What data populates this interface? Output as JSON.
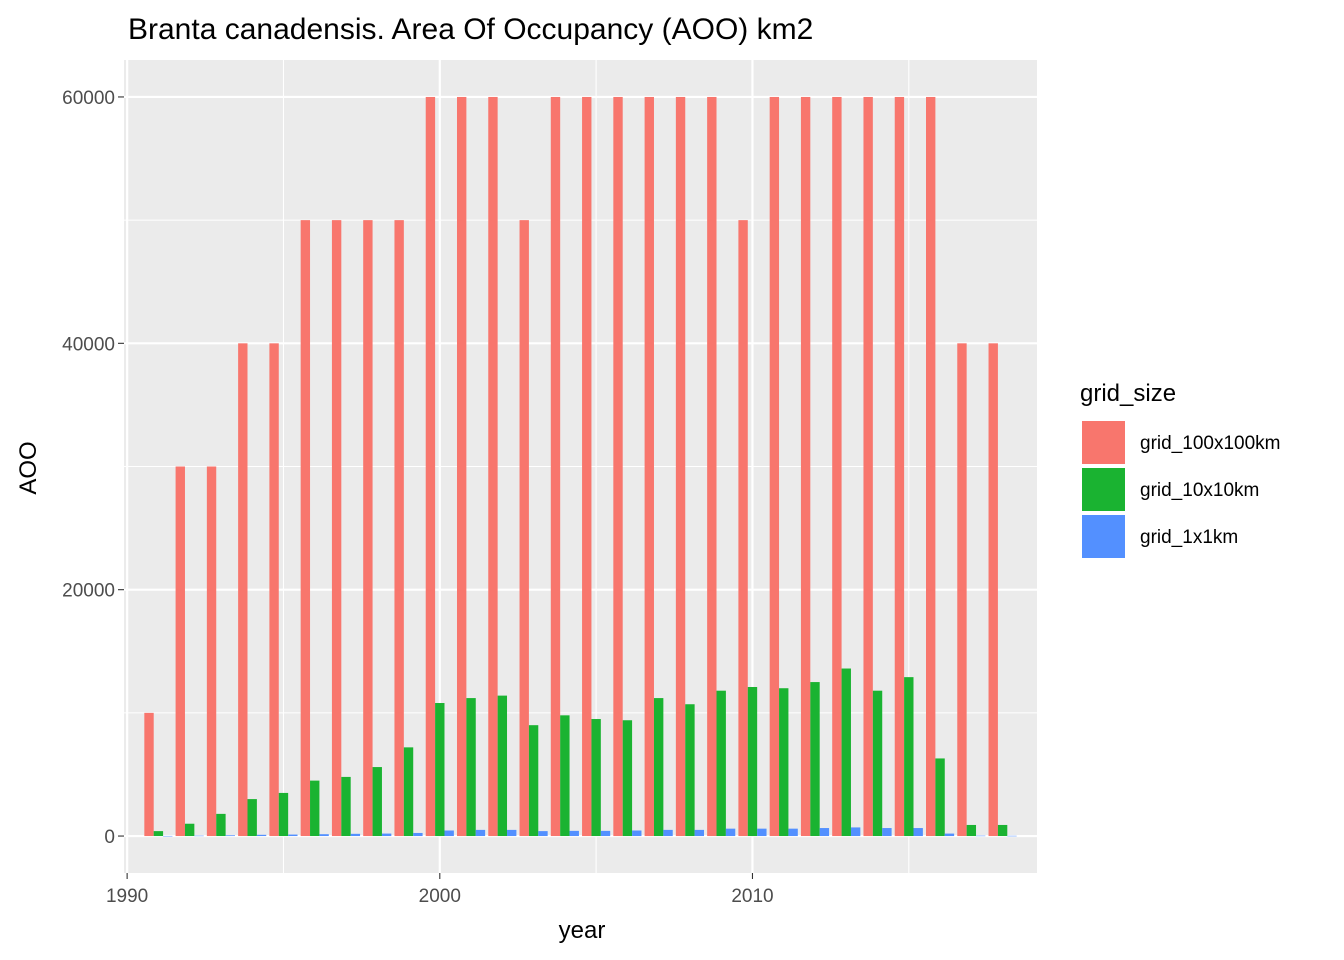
{
  "chart_data": {
    "type": "bar",
    "title": "Branta canadensis. Area Of Occupancy (AOO) km2",
    "xlabel": "year",
    "ylabel": "AOO",
    "x_ticks": [
      "1990",
      "2000",
      "2010"
    ],
    "y_ticks": [
      "0",
      "20000",
      "40000",
      "60000"
    ],
    "xlim": [
      1989.9,
      2019.1
    ],
    "ylim": [
      -3000,
      63000
    ],
    "grid": true,
    "legend": {
      "title": "grid_size",
      "position": "right"
    },
    "x": [
      1991,
      1992,
      1993,
      1994,
      1995,
      1996,
      1997,
      1998,
      1999,
      2000,
      2001,
      2002,
      2003,
      2004,
      2005,
      2006,
      2007,
      2008,
      2009,
      2010,
      2011,
      2012,
      2013,
      2014,
      2015,
      2016,
      2017,
      2018
    ],
    "series": [
      {
        "name": "grid_100x100km",
        "color": "#F8766D",
        "values": [
          10000,
          30000,
          30000,
          40000,
          40000,
          50000,
          50000,
          50000,
          50000,
          60000,
          60000,
          60000,
          50000,
          60000,
          60000,
          60000,
          60000,
          60000,
          60000,
          50000,
          60000,
          60000,
          60000,
          60000,
          60000,
          60000,
          40000,
          40000
        ]
      },
      {
        "name": "grid_10x10km",
        "color": "#1AB331",
        "values": [
          400,
          1000,
          1800,
          3000,
          3500,
          4500,
          4800,
          5600,
          7200,
          10800,
          11200,
          11400,
          9000,
          9800,
          9500,
          9400,
          11200,
          10700,
          11800,
          12100,
          12000,
          12500,
          13600,
          11800,
          12900,
          6300,
          900,
          900
        ]
      },
      {
        "name": "grid_1x1km",
        "color": "#5390FF",
        "values": [
          10,
          30,
          60,
          100,
          120,
          150,
          180,
          200,
          250,
          450,
          500,
          500,
          400,
          420,
          420,
          450,
          500,
          500,
          600,
          600,
          600,
          650,
          700,
          650,
          650,
          200,
          30,
          20
        ]
      }
    ]
  }
}
